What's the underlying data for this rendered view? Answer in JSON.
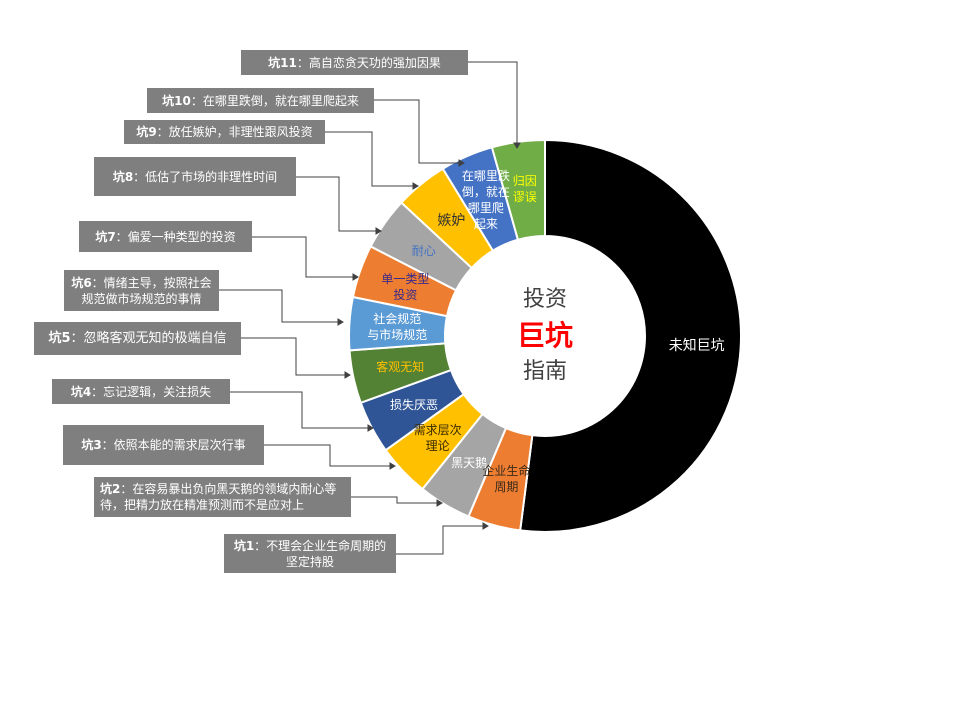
{
  "chart_data": {
    "type": "pie",
    "subtype": "donut",
    "center_title": [
      "投资",
      "巨坑",
      "指南"
    ],
    "segments": [
      {
        "label": "未知巨坑",
        "value": 52,
        "color": "#000000",
        "text_color": "#ffffff"
      },
      {
        "label": "企业生命\n周期",
        "value": 4.36,
        "color": "#ed7d31",
        "text_color": "#3a2a1a"
      },
      {
        "label": "黑天鹅",
        "value": 4.36,
        "color": "#a5a5a5",
        "text_color": "#ffffff"
      },
      {
        "label": "需求层次\n理论",
        "value": 4.36,
        "color": "#ffc000",
        "text_color": "#3a2a00"
      },
      {
        "label": "损失厌恶",
        "value": 4.36,
        "color": "#2f5597",
        "text_color": "#ffffff"
      },
      {
        "label": "客观无知",
        "value": 4.36,
        "color": "#548235",
        "text_color": "#ffc000"
      },
      {
        "label": "社会规范\n与市场规范",
        "value": 4.36,
        "color": "#5b9bd5",
        "text_color": "#ffffff"
      },
      {
        "label": "单一类型\n投资",
        "value": 4.36,
        "color": "#ed7d31",
        "text_color": "#3a2a8a"
      },
      {
        "label": "耐心",
        "value": 4.36,
        "color": "#a5a5a5",
        "text_color": "#4472c4"
      },
      {
        "label": "嫉妒",
        "value": 4.36,
        "color": "#ffc000",
        "text_color": "#333333"
      },
      {
        "label": "在哪里跌\n倒，就在\n哪里爬\n起来",
        "value": 4.36,
        "color": "#4472c4",
        "text_color": "#ffffff"
      },
      {
        "label": "归因\n谬误",
        "value": 4.36,
        "color": "#70ad47",
        "text_color": "#ffff00"
      }
    ],
    "annotations": [
      {
        "num": "坑11",
        "text": "：高自恋贪天功的强加因果"
      },
      {
        "num": "坑10",
        "text": "：在哪里跌倒，就在哪里爬起来"
      },
      {
        "num": "坑9",
        "text": "：放任嫉妒，非理性跟风投资"
      },
      {
        "num": "坑8",
        "text": "：低估了市场的非理性时间"
      },
      {
        "num": "坑7",
        "text": "：偏爱一种类型的投资"
      },
      {
        "num": "坑6",
        "text": "：情绪主导，按照社会规范做市场规范的事情"
      },
      {
        "num": "坑5",
        "text": "：忽略客观无知的极端自信"
      },
      {
        "num": "坑4",
        "text": "：忘记逻辑，关注损失"
      },
      {
        "num": "坑3",
        "text": "：依照本能的需求层次行事"
      },
      {
        "num": "坑2",
        "text": "：在容易暴出负向黑天鹅的领域内耐心等待，把精力放在精准预测而不是应对上"
      },
      {
        "num": "坑1",
        "text": "：不理会企业生命周期的坚定持股"
      }
    ]
  }
}
